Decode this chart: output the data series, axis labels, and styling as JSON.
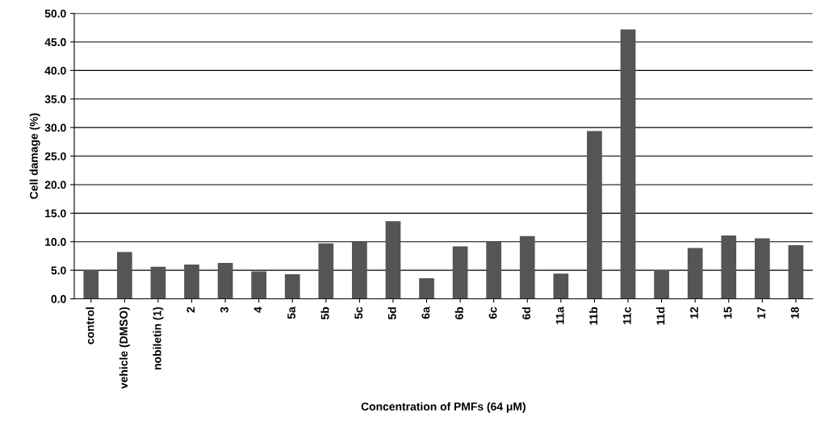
{
  "chart_data": {
    "type": "bar",
    "xlabel": "Concentration of PMFs (64 μM)",
    "ylabel": "Cell damage (%)",
    "categories": [
      "control",
      "vehicle (DMSO)",
      "nobiletin (1)",
      "2",
      "3",
      "4",
      "5a",
      "5b",
      "5c",
      "5d",
      "6a",
      "6b",
      "6c",
      "6d",
      "11a",
      "11b",
      "11c",
      "11d",
      "12",
      "15",
      "17",
      "18"
    ],
    "values": [
      5.0,
      8.2,
      5.6,
      6.0,
      6.3,
      4.8,
      4.3,
      9.7,
      10.0,
      13.6,
      3.6,
      9.2,
      10.0,
      11.0,
      4.4,
      29.4,
      47.2,
      5.0,
      8.9,
      11.1,
      10.6,
      9.4
    ],
    "color": "#555555",
    "ylim": [
      0,
      50
    ],
    "yticks": [
      {
        "value": 0,
        "label": "0.0"
      },
      {
        "value": 5,
        "label": "5.0"
      },
      {
        "value": 10,
        "label": "10.0"
      },
      {
        "value": 15,
        "label": "15.0"
      },
      {
        "value": 20,
        "label": "20.0"
      },
      {
        "value": 25,
        "label": "25.0"
      },
      {
        "value": 30,
        "label": "30.0"
      },
      {
        "value": 35,
        "label": "35.0"
      },
      {
        "value": 40,
        "label": "40.0"
      },
      {
        "value": 45,
        "label": "45.0"
      },
      {
        "value": 50,
        "label": "50.0"
      }
    ],
    "grid": "y"
  }
}
